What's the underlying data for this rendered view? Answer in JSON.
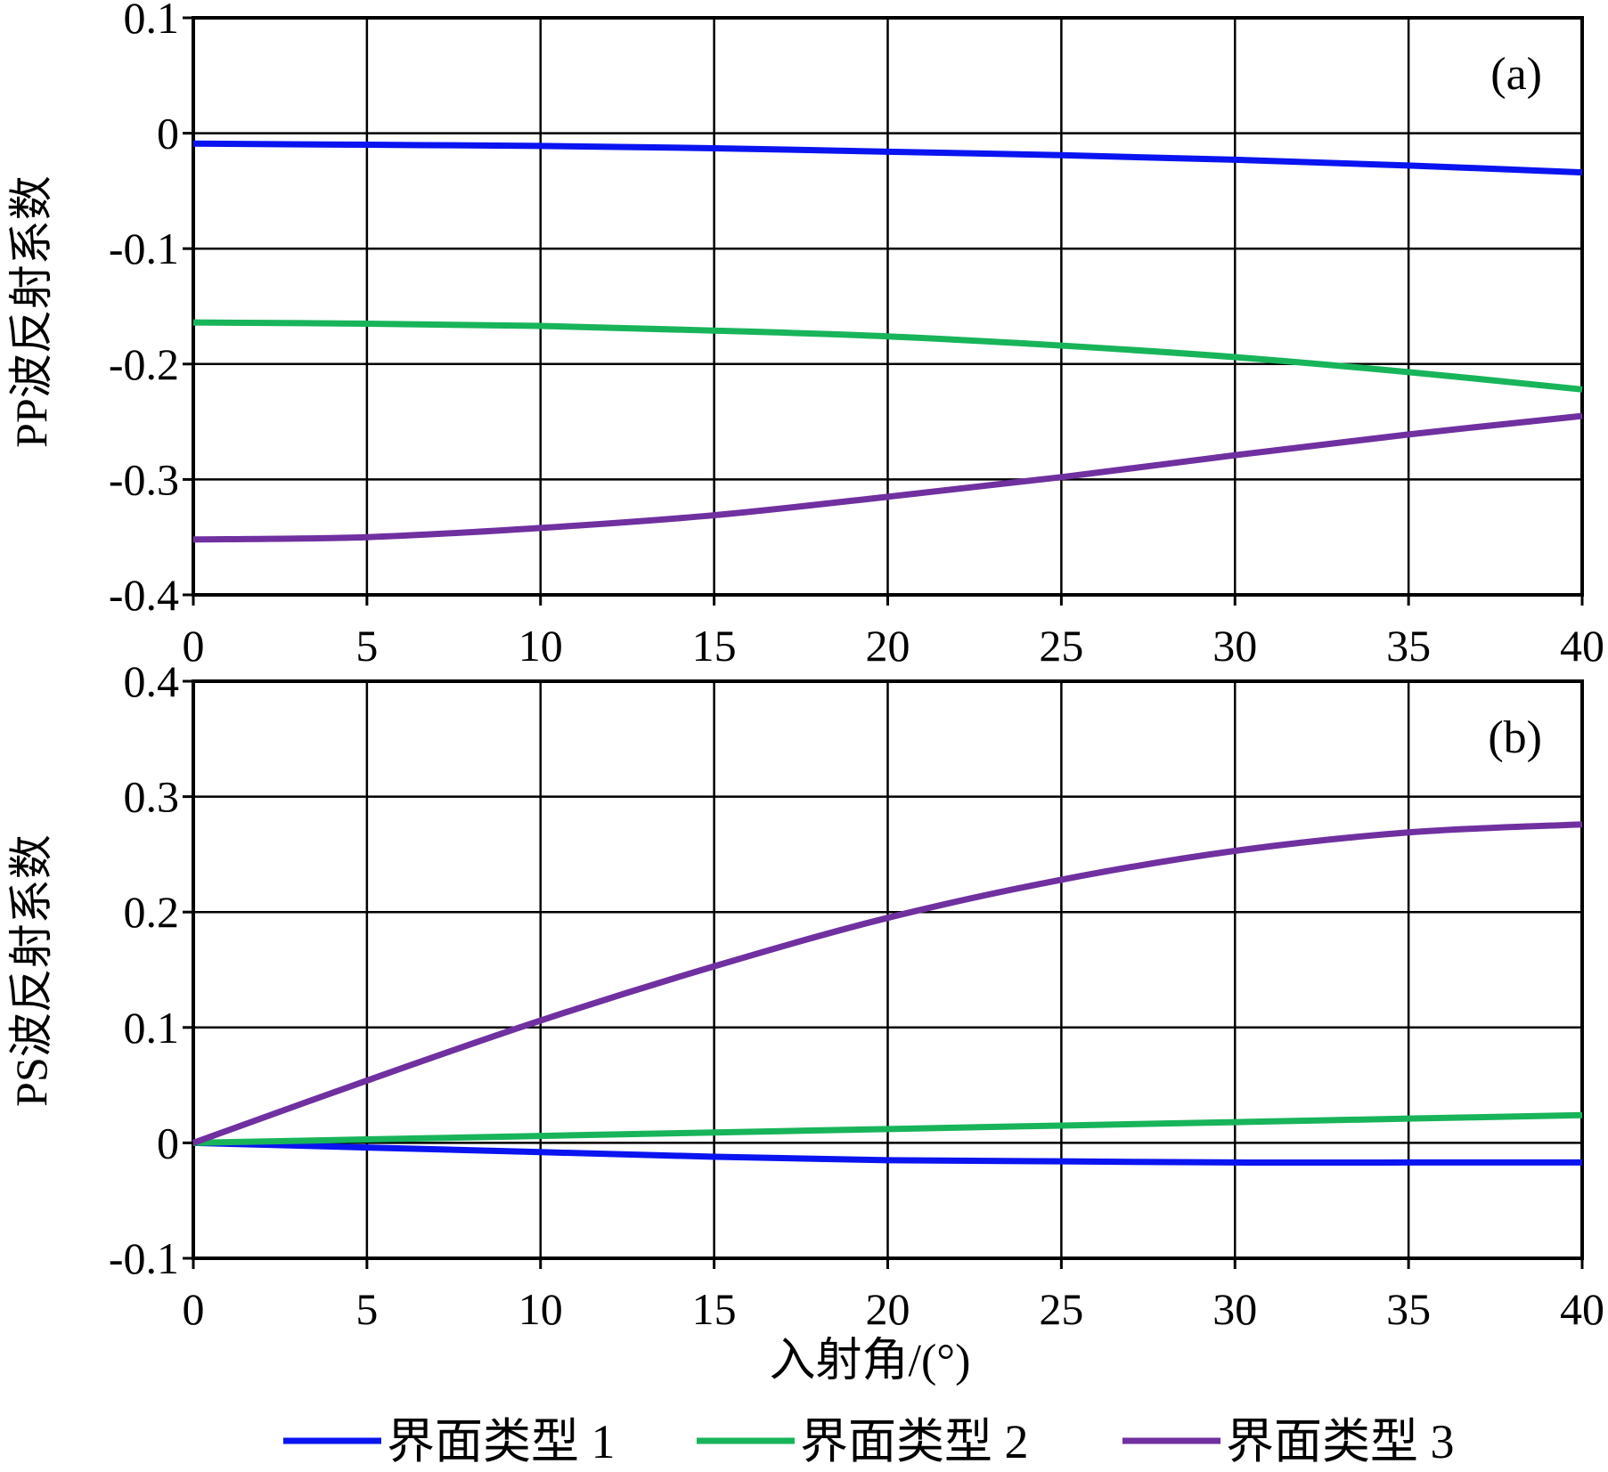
{
  "chart_data": [
    {
      "id": "a",
      "type": "line",
      "panel_label": "(a)",
      "ylabel": "PP波反射系数",
      "xlabel": "",
      "xlim": [
        0,
        40
      ],
      "ylim": [
        -0.4,
        0.1
      ],
      "xticks": [
        "0",
        "5",
        "10",
        "15",
        "20",
        "25",
        "30",
        "35",
        "40"
      ],
      "yticks": [
        "0.1",
        "0",
        "-0.1",
        "-0.2",
        "-0.3",
        "-0.4"
      ],
      "grid": true,
      "x": [
        0,
        5,
        10,
        15,
        20,
        25,
        30,
        35,
        40
      ],
      "series": [
        {
          "name": "界面类型 1",
          "color": "#0a14f0",
          "values": [
            -0.009,
            -0.01,
            -0.011,
            -0.013,
            -0.016,
            -0.019,
            -0.023,
            -0.028,
            -0.034
          ]
        },
        {
          "name": "界面类型 2",
          "color": "#18b45a",
          "values": [
            -0.164,
            -0.165,
            -0.167,
            -0.171,
            -0.176,
            -0.184,
            -0.194,
            -0.207,
            -0.222
          ]
        },
        {
          "name": "界面类型 3",
          "color": "#7030a0",
          "values": [
            -0.352,
            -0.35,
            -0.342,
            -0.331,
            -0.315,
            -0.298,
            -0.279,
            -0.261,
            -0.245
          ]
        }
      ]
    },
    {
      "id": "b",
      "type": "line",
      "panel_label": "(b)",
      "ylabel": "PS波反射系数",
      "xlabel": "入射角/(°)",
      "xlim": [
        0,
        40
      ],
      "ylim": [
        -0.1,
        0.4
      ],
      "xticks": [
        "0",
        "5",
        "10",
        "15",
        "20",
        "25",
        "30",
        "35",
        "40"
      ],
      "yticks": [
        "0.4",
        "0.3",
        "0.2",
        "0.1",
        "0",
        "-0.1"
      ],
      "grid": true,
      "x": [
        0,
        5,
        10,
        15,
        20,
        25,
        30,
        35,
        40
      ],
      "series": [
        {
          "name": "界面类型 1",
          "color": "#0a14f0",
          "values": [
            0.0,
            -0.004,
            -0.008,
            -0.012,
            -0.015,
            -0.016,
            -0.017,
            -0.017,
            -0.017
          ]
        },
        {
          "name": "界面类型 2",
          "color": "#18b45a",
          "values": [
            0.0,
            0.003,
            0.006,
            0.009,
            0.012,
            0.015,
            0.018,
            0.021,
            0.024
          ]
        },
        {
          "name": "界面类型 3",
          "color": "#7030a0",
          "values": [
            0.0,
            0.054,
            0.106,
            0.153,
            0.195,
            0.228,
            0.253,
            0.269,
            0.276
          ]
        }
      ]
    }
  ],
  "legend": {
    "placement": "bottom",
    "items": [
      {
        "label": "界面类型 1",
        "color": "#0a14f0"
      },
      {
        "label": "界面类型 2",
        "color": "#18b45a"
      },
      {
        "label": "界面类型 3",
        "color": "#7030a0"
      }
    ]
  }
}
